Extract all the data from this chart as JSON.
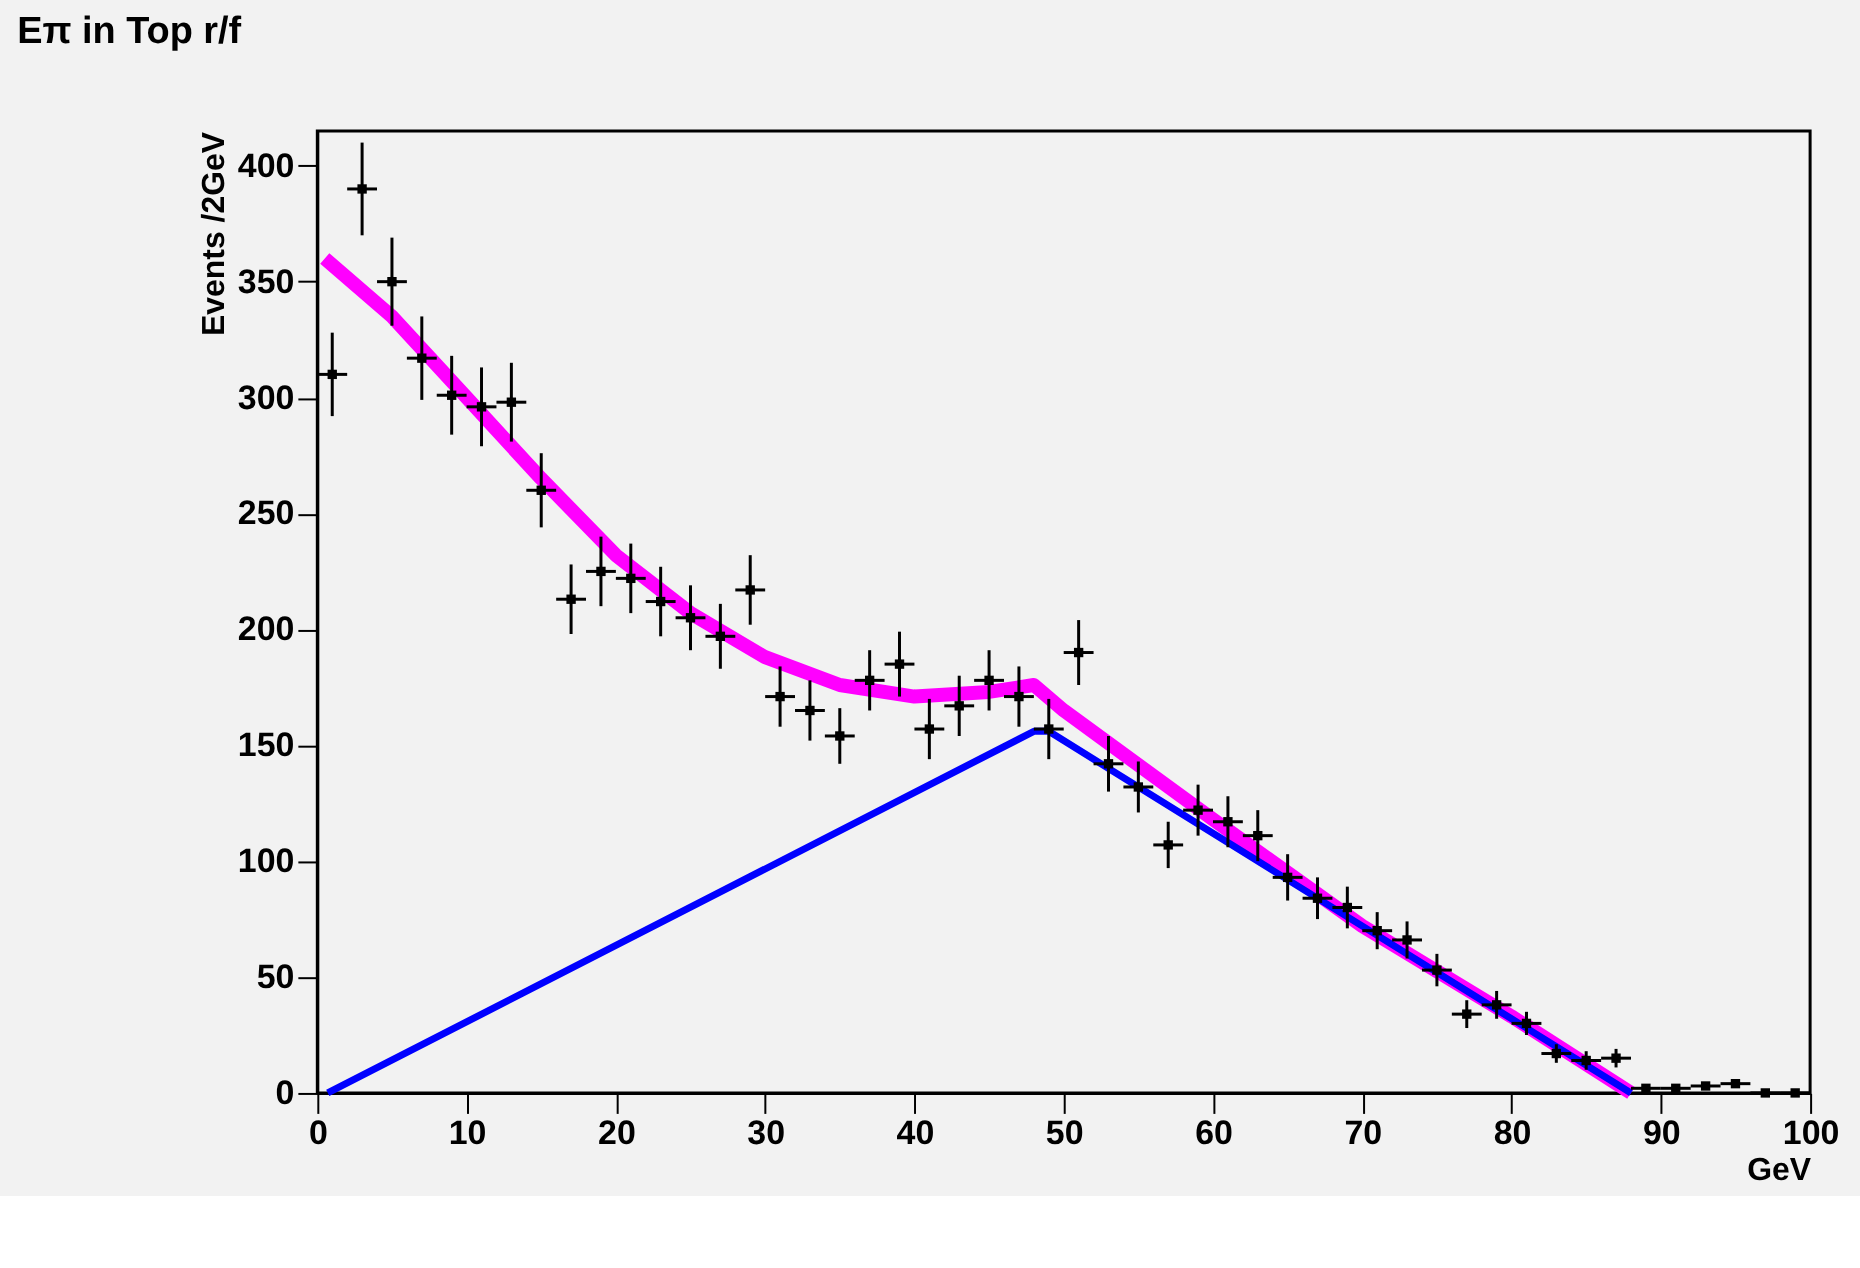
{
  "chart_data": {
    "type": "scatter",
    "title": "Eπ in Top r/f",
    "xlabel": "GeV",
    "ylabel": "Events /2GeV",
    "xlim": [
      0,
      100
    ],
    "ylim": [
      0,
      415
    ],
    "xticks": [
      0,
      10,
      20,
      30,
      40,
      50,
      60,
      70,
      80,
      90,
      100
    ],
    "yticks": [
      0,
      50,
      100,
      150,
      200,
      250,
      300,
      350,
      400
    ],
    "grid": false,
    "series": [
      {
        "color": "#000000",
        "marker": "square",
        "x": [
          1,
          3,
          5,
          7,
          9,
          11,
          13,
          15,
          17,
          19,
          21,
          23,
          25,
          27,
          29,
          31,
          33,
          35,
          37,
          39,
          41,
          43,
          45,
          47,
          49,
          51,
          53,
          55,
          57,
          59,
          61,
          63,
          65,
          67,
          69,
          71,
          73,
          75,
          77,
          79,
          81,
          83,
          85,
          87,
          89,
          91,
          93,
          95,
          97,
          99
        ],
        "values": [
          310,
          390,
          350,
          317,
          301,
          296,
          298,
          260,
          213,
          225,
          222,
          212,
          205,
          197,
          217,
          171,
          165,
          154,
          178,
          185,
          157,
          167,
          178,
          171,
          157,
          190,
          142,
          132,
          107,
          122,
          117,
          111,
          93,
          84,
          80,
          70,
          66,
          53,
          34,
          38,
          30,
          17,
          14,
          15,
          2,
          2,
          3,
          4,
          0,
          0
        ],
        "errors": [
          18,
          20,
          19,
          18,
          17,
          17,
          17,
          16,
          15,
          15,
          15,
          15,
          14,
          14,
          15,
          13,
          13,
          12,
          13,
          14,
          13,
          13,
          13,
          13,
          13,
          14,
          12,
          11,
          10,
          11,
          11,
          11,
          10,
          9,
          9,
          8,
          8,
          7,
          6,
          6,
          5,
          4,
          4,
          4,
          null,
          null,
          null,
          null,
          null,
          null
        ],
        "xerrors": [
          1,
          1,
          1,
          1,
          1,
          1,
          1,
          1,
          1,
          1,
          1,
          1,
          1,
          1,
          1,
          1,
          1,
          1,
          1,
          1,
          1,
          1,
          1,
          1,
          1,
          1,
          1,
          1,
          1,
          1,
          1,
          1,
          1,
          1,
          1,
          1,
          1,
          1,
          1,
          1,
          1,
          1,
          1,
          1,
          1,
          1,
          1,
          1,
          1,
          1
        ]
      },
      {
        "type": "line",
        "color": "#ff00ff",
        "x": [
          0.5,
          5,
          10,
          15,
          20,
          25,
          30,
          35,
          40,
          45,
          48,
          50,
          60,
          70,
          80,
          88
        ],
        "values": [
          360,
          335,
          300,
          265,
          232,
          207,
          188,
          176,
          171,
          173,
          176,
          165,
          118,
          72,
          33,
          0
        ]
      },
      {
        "type": "line",
        "color": "#0000ff",
        "x": [
          0.7,
          48,
          49,
          88
        ],
        "values": [
          0,
          156,
          156,
          0
        ]
      }
    ]
  }
}
